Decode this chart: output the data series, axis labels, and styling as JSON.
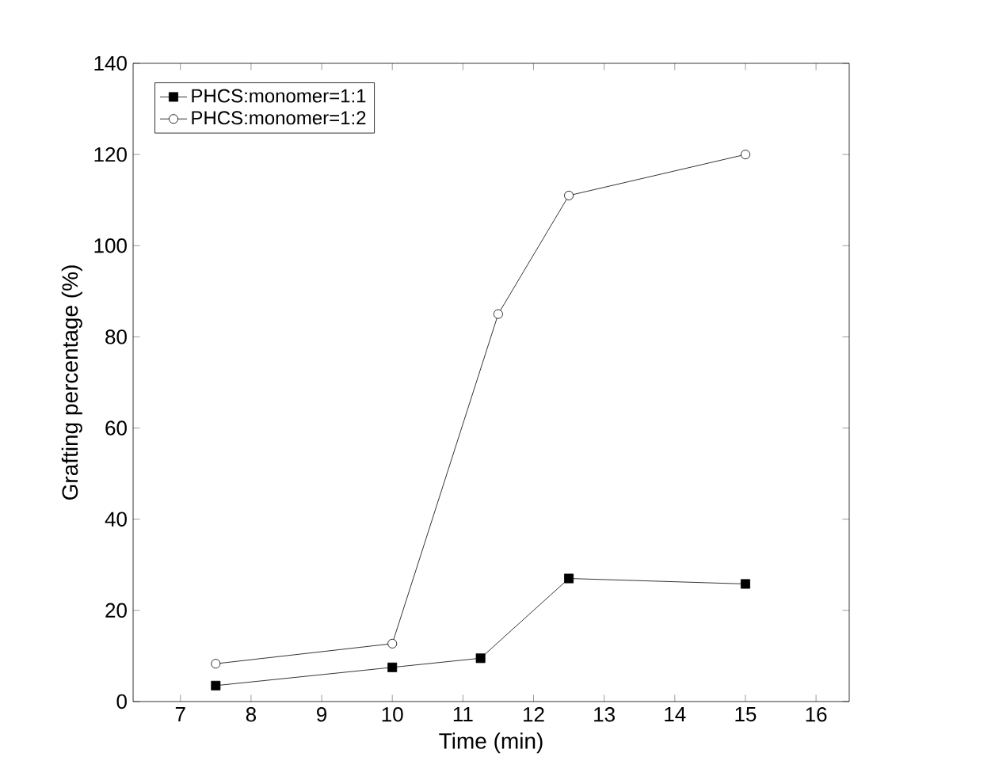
{
  "chart_data": {
    "type": "line",
    "xlabel": "Time (min)",
    "ylabel": "Grafting percentage (%)",
    "xlim": [
      6.33,
      16.47
    ],
    "xticks": [
      7,
      8,
      9,
      10,
      11,
      12,
      13,
      14,
      15,
      16
    ],
    "ylim": [
      0,
      140
    ],
    "yticks": [
      0,
      20,
      40,
      60,
      80,
      100,
      120,
      140
    ],
    "legend": "top left",
    "grid": false,
    "series": [
      {
        "name": "PHCS:monomer=1:1",
        "color": "#000000",
        "marker": "square",
        "x": [
          7.5,
          10,
          11.25,
          12.5,
          15
        ],
        "values": [
          3.5,
          7.5,
          9.5,
          27,
          25.8
        ]
      },
      {
        "name": "PHCS:monomer=1:2",
        "color": "#000000",
        "marker": "circle",
        "x": [
          7.5,
          10,
          11.5,
          12.5,
          15
        ],
        "values": [
          8.3,
          12.7,
          85,
          111,
          120
        ]
      }
    ]
  }
}
